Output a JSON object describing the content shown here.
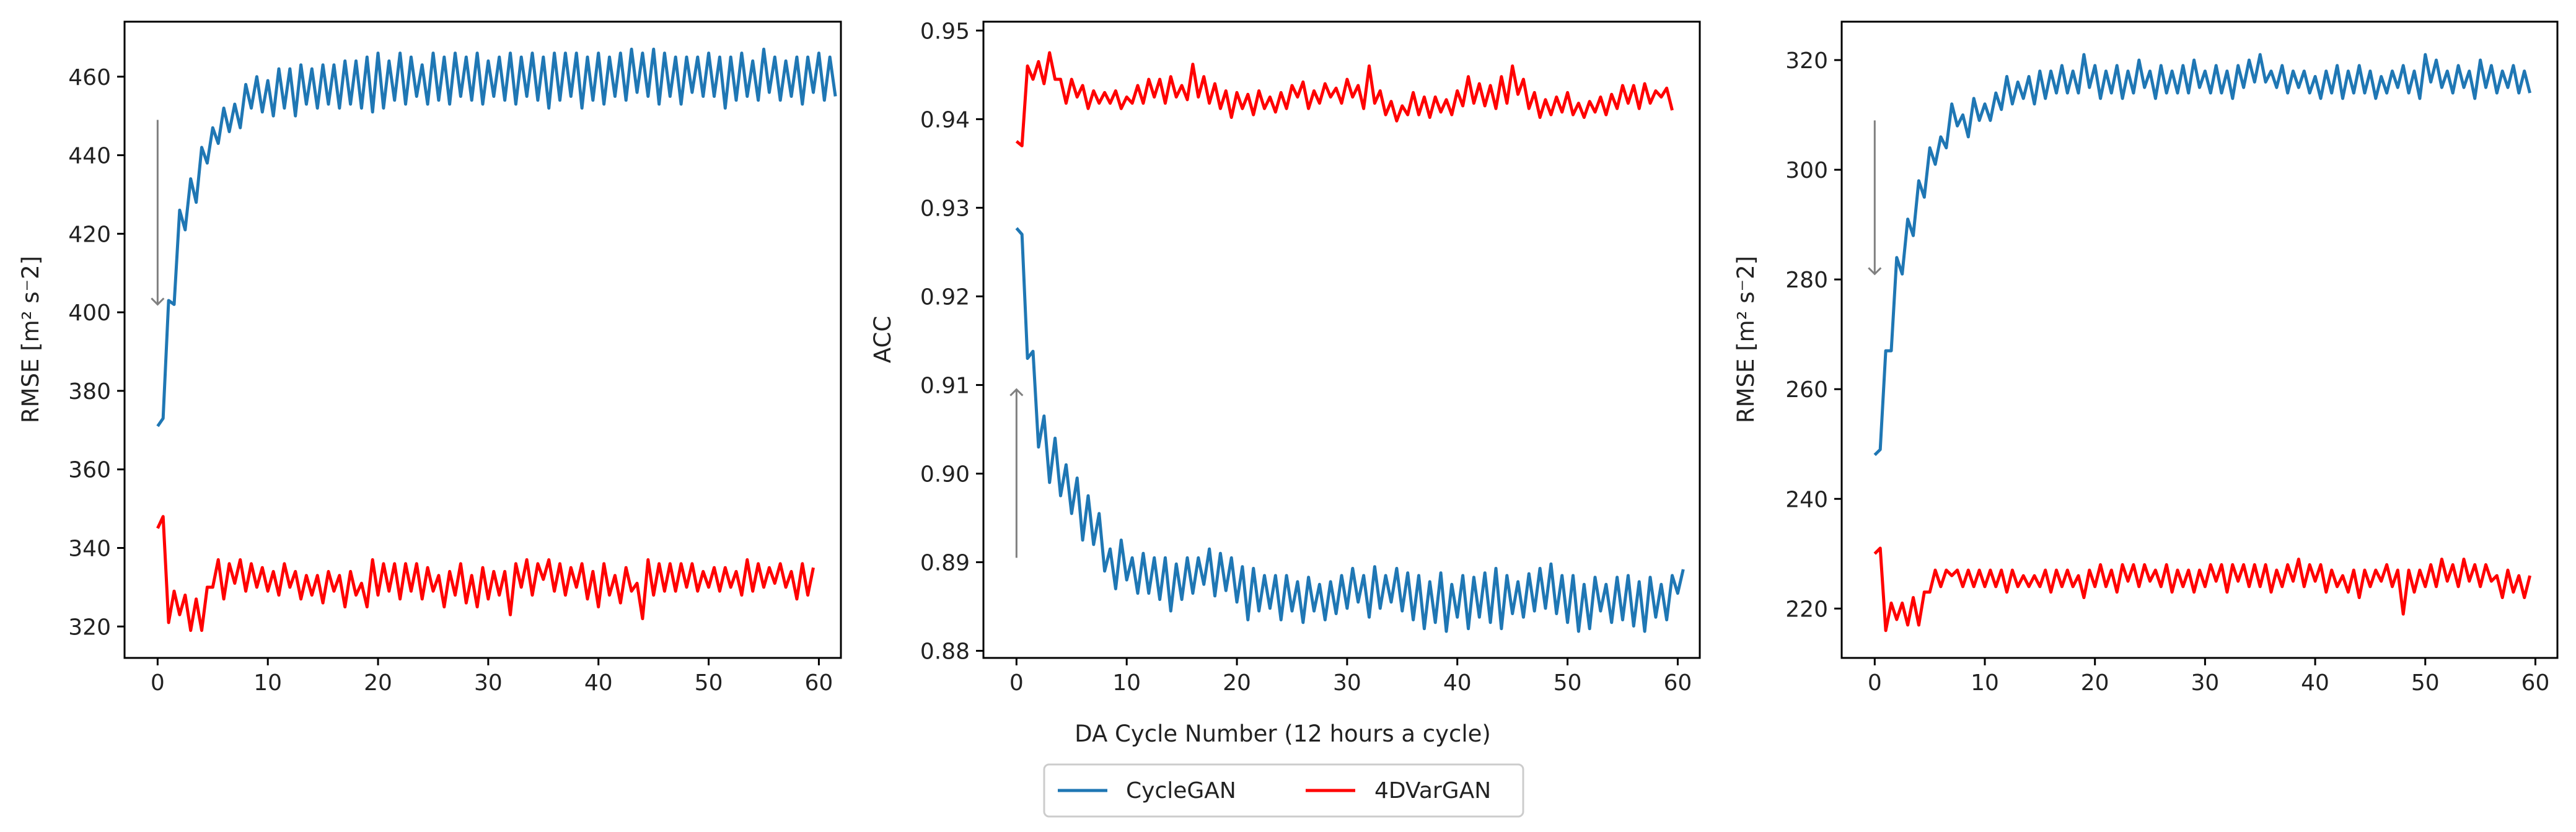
{
  "figure": {
    "shared_xlabel": "DA Cycle Number (12 hours a cycle)",
    "legend": [
      {
        "name": "CycleGAN",
        "color": "#1f77b4"
      },
      {
        "name": "4DVarGAN",
        "color": "#ff0000"
      }
    ],
    "legend_position": "bottom-center",
    "arrow_color": "#808080"
  },
  "chart_data": [
    {
      "type": "line",
      "ylabel": "RMSE [m² s⁻2]",
      "xlim": [
        -3,
        62
      ],
      "ylim": [
        312,
        474
      ],
      "xticks": [
        0,
        10,
        20,
        30,
        40,
        50,
        60
      ],
      "yticks": [
        320,
        340,
        360,
        380,
        400,
        420,
        440,
        460
      ],
      "x_step": 0.5,
      "grid": false,
      "annotation_arrow": {
        "x": 0,
        "from_y": 449,
        "to_y": 402,
        "direction": "down"
      },
      "series": [
        {
          "name": "CycleGAN",
          "values": [
            371,
            373,
            403,
            402,
            426,
            421,
            434,
            428,
            442,
            438,
            447,
            443,
            452,
            446,
            453,
            447,
            458,
            452,
            460,
            451,
            459,
            450,
            462,
            452,
            462,
            450,
            463,
            453,
            462,
            452,
            463,
            453,
            463,
            452,
            464,
            453,
            464,
            452,
            465,
            451,
            466,
            452,
            464,
            454,
            466,
            453,
            465,
            455,
            463,
            453,
            466,
            454,
            465,
            453,
            466,
            455,
            465,
            454,
            466,
            453,
            464,
            455,
            465,
            454,
            466,
            453,
            465,
            455,
            466,
            454,
            465,
            452,
            466,
            454,
            466,
            455,
            466,
            452,
            465,
            454,
            466,
            453,
            465,
            455,
            466,
            454,
            467,
            456,
            466,
            455,
            467,
            453,
            466,
            455,
            465,
            453,
            465,
            456,
            465,
            455,
            466,
            455,
            465,
            452,
            465,
            454,
            466,
            455,
            464,
            454,
            467,
            456,
            465,
            454,
            464,
            455,
            465,
            453,
            465,
            456,
            466,
            454,
            465,
            455
          ]
        },
        {
          "name": "4DVarGAN",
          "values": [
            345,
            348,
            321,
            329,
            323,
            328,
            319,
            327,
            319,
            330,
            330,
            337,
            327,
            336,
            331,
            337,
            329,
            336,
            330,
            335,
            329,
            334,
            328,
            336,
            330,
            334,
            327,
            333,
            328,
            333,
            326,
            334,
            329,
            333,
            325,
            334,
            328,
            331,
            325,
            337,
            328,
            336,
            329,
            336,
            327,
            336,
            329,
            336,
            327,
            335,
            329,
            333,
            325,
            334,
            328,
            336,
            326,
            333,
            325,
            335,
            327,
            334,
            328,
            334,
            323,
            336,
            330,
            337,
            328,
            336,
            332,
            337,
            329,
            336,
            328,
            335,
            330,
            336,
            327,
            334,
            325,
            336,
            328,
            333,
            326,
            335,
            329,
            331,
            322,
            337,
            328,
            336,
            329,
            336,
            329,
            336,
            330,
            336,
            329,
            334,
            330,
            335,
            329,
            335,
            330,
            334,
            328,
            337,
            329,
            336,
            330,
            335,
            331,
            336,
            330,
            334,
            327,
            336,
            328,
            335
          ]
        }
      ]
    },
    {
      "type": "line",
      "ylabel": "ACC",
      "xlim": [
        -3,
        62
      ],
      "ylim": [
        0.8792,
        0.951
      ],
      "xticks": [
        0,
        10,
        20,
        30,
        40,
        50,
        60
      ],
      "yticks": [
        0.88,
        0.89,
        0.9,
        0.91,
        0.92,
        0.93,
        0.94,
        0.95
      ],
      "x_step": 0.5,
      "grid": false,
      "annotation_arrow": {
        "x": 0,
        "from_y": 0.8905,
        "to_y": 0.9095,
        "direction": "up"
      },
      "series": [
        {
          "name": "CycleGAN",
          "values": [
            0.9277,
            0.927,
            0.913,
            0.9138,
            0.903,
            0.9065,
            0.899,
            0.904,
            0.8975,
            0.901,
            0.8955,
            0.8995,
            0.8925,
            0.8975,
            0.892,
            0.8955,
            0.889,
            0.8915,
            0.887,
            0.8925,
            0.888,
            0.8905,
            0.8865,
            0.891,
            0.8865,
            0.8905,
            0.8858,
            0.8905,
            0.8845,
            0.8898,
            0.8858,
            0.8905,
            0.8865,
            0.8905,
            0.8875,
            0.8915,
            0.8862,
            0.891,
            0.8868,
            0.8905,
            0.8855,
            0.8895,
            0.8835,
            0.8893,
            0.8845,
            0.8885,
            0.8848,
            0.8885,
            0.8835,
            0.8885,
            0.8845,
            0.8878,
            0.8832,
            0.8883,
            0.8845,
            0.8875,
            0.8835,
            0.8878,
            0.8842,
            0.8885,
            0.8848,
            0.8893,
            0.8855,
            0.8885,
            0.8838,
            0.8895,
            0.8848,
            0.8885,
            0.8855,
            0.8893,
            0.8845,
            0.8888,
            0.8835,
            0.8885,
            0.8825,
            0.8878,
            0.8832,
            0.8888,
            0.8822,
            0.8875,
            0.8838,
            0.8885,
            0.8825,
            0.8883,
            0.8838,
            0.8888,
            0.8832,
            0.8893,
            0.8825,
            0.8885,
            0.8842,
            0.8878,
            0.8838,
            0.8887,
            0.8845,
            0.8893,
            0.8848,
            0.8898,
            0.8842,
            0.8885,
            0.8832,
            0.8885,
            0.8822,
            0.8875,
            0.8825,
            0.8883,
            0.8845,
            0.8875,
            0.8832,
            0.8883,
            0.8835,
            0.8885,
            0.8828,
            0.8878,
            0.8822,
            0.8883,
            0.8838,
            0.8875,
            0.8835,
            0.8885,
            0.8865,
            0.8892
          ]
        },
        {
          "name": "4DVarGAN",
          "values": [
            0.9375,
            0.937,
            0.946,
            0.9445,
            0.9465,
            0.944,
            0.9475,
            0.9445,
            0.9445,
            0.9418,
            0.9445,
            0.9425,
            0.9438,
            0.9412,
            0.9432,
            0.9418,
            0.943,
            0.9418,
            0.9432,
            0.9412,
            0.9425,
            0.9418,
            0.9438,
            0.9418,
            0.9445,
            0.9425,
            0.9445,
            0.9418,
            0.9448,
            0.9425,
            0.9438,
            0.9422,
            0.9462,
            0.9425,
            0.9448,
            0.9418,
            0.944,
            0.9412,
            0.9432,
            0.9402,
            0.943,
            0.9412,
            0.9428,
            0.9405,
            0.9432,
            0.9412,
            0.9425,
            0.9408,
            0.943,
            0.9412,
            0.9438,
            0.9425,
            0.9442,
            0.9412,
            0.9432,
            0.9418,
            0.944,
            0.9425,
            0.9435,
            0.9418,
            0.9445,
            0.9425,
            0.9438,
            0.9412,
            0.946,
            0.9418,
            0.9432,
            0.9405,
            0.942,
            0.9398,
            0.9415,
            0.9405,
            0.943,
            0.9405,
            0.9425,
            0.9402,
            0.9425,
            0.9408,
            0.9422,
            0.9405,
            0.9432,
            0.9415,
            0.9448,
            0.9418,
            0.944,
            0.9415,
            0.9438,
            0.9412,
            0.9448,
            0.9418,
            0.946,
            0.9428,
            0.9445,
            0.9412,
            0.943,
            0.9402,
            0.9422,
            0.9405,
            0.9425,
            0.9408,
            0.943,
            0.9405,
            0.9418,
            0.9402,
            0.942,
            0.9408,
            0.9425,
            0.9405,
            0.9428,
            0.9412,
            0.9438,
            0.9418,
            0.9438,
            0.9412,
            0.944,
            0.9418,
            0.9432,
            0.9425,
            0.9435,
            0.941
          ]
        }
      ]
    },
    {
      "type": "line",
      "ylabel": "RMSE [m² s⁻2]",
      "xlim": [
        -3,
        62
      ],
      "ylim": [
        211,
        327
      ],
      "xticks": [
        0,
        10,
        20,
        30,
        40,
        50,
        60
      ],
      "yticks": [
        220,
        240,
        260,
        280,
        300,
        320
      ],
      "x_step": 0.5,
      "grid": false,
      "annotation_arrow": {
        "x": 0,
        "from_y": 309,
        "to_y": 281,
        "direction": "down"
      },
      "series": [
        {
          "name": "CycleGAN",
          "values": [
            248,
            249,
            267,
            267,
            284,
            281,
            291,
            288,
            298,
            295,
            304,
            301,
            306,
            304,
            312,
            308,
            310,
            306,
            313,
            309,
            312,
            309,
            314,
            311,
            317,
            312,
            316,
            313,
            317,
            312,
            318,
            313,
            318,
            314,
            319,
            314,
            318,
            314,
            321,
            315,
            319,
            313,
            318,
            314,
            319,
            313,
            318,
            314,
            320,
            315,
            318,
            313,
            319,
            314,
            318,
            314,
            319,
            314,
            320,
            315,
            318,
            314,
            319,
            314,
            318,
            313,
            319,
            315,
            320,
            316,
            321,
            316,
            318,
            315,
            319,
            314,
            318,
            315,
            318,
            314,
            317,
            313,
            318,
            314,
            319,
            313,
            318,
            314,
            319,
            314,
            318,
            313,
            317,
            314,
            318,
            315,
            319,
            314,
            318,
            313,
            321,
            316,
            320,
            315,
            318,
            314,
            319,
            315,
            318,
            313,
            320,
            315,
            319,
            314,
            318,
            315,
            319,
            314,
            318,
            314
          ]
        },
        {
          "name": "4DVarGAN",
          "values": [
            230,
            231,
            216,
            221,
            218,
            221,
            217,
            222,
            217,
            223,
            223,
            227,
            224,
            227,
            226,
            227,
            224,
            227,
            224,
            227,
            224,
            227,
            224,
            227,
            223,
            227,
            224,
            226,
            224,
            226,
            224,
            227,
            223,
            227,
            224,
            227,
            224,
            226,
            222,
            227,
            224,
            228,
            224,
            227,
            223,
            228,
            225,
            228,
            224,
            228,
            225,
            227,
            224,
            228,
            223,
            227,
            224,
            227,
            223,
            227,
            224,
            228,
            225,
            228,
            223,
            228,
            225,
            228,
            224,
            228,
            224,
            228,
            223,
            227,
            224,
            228,
            225,
            229,
            224,
            228,
            225,
            228,
            223,
            227,
            224,
            226,
            223,
            227,
            222,
            227,
            224,
            227,
            225,
            228,
            224,
            227,
            219,
            227,
            223,
            227,
            224,
            228,
            224,
            229,
            225,
            228,
            224,
            229,
            225,
            228,
            224,
            228,
            225,
            226,
            222,
            227,
            223,
            226,
            222,
            226
          ]
        }
      ]
    }
  ]
}
